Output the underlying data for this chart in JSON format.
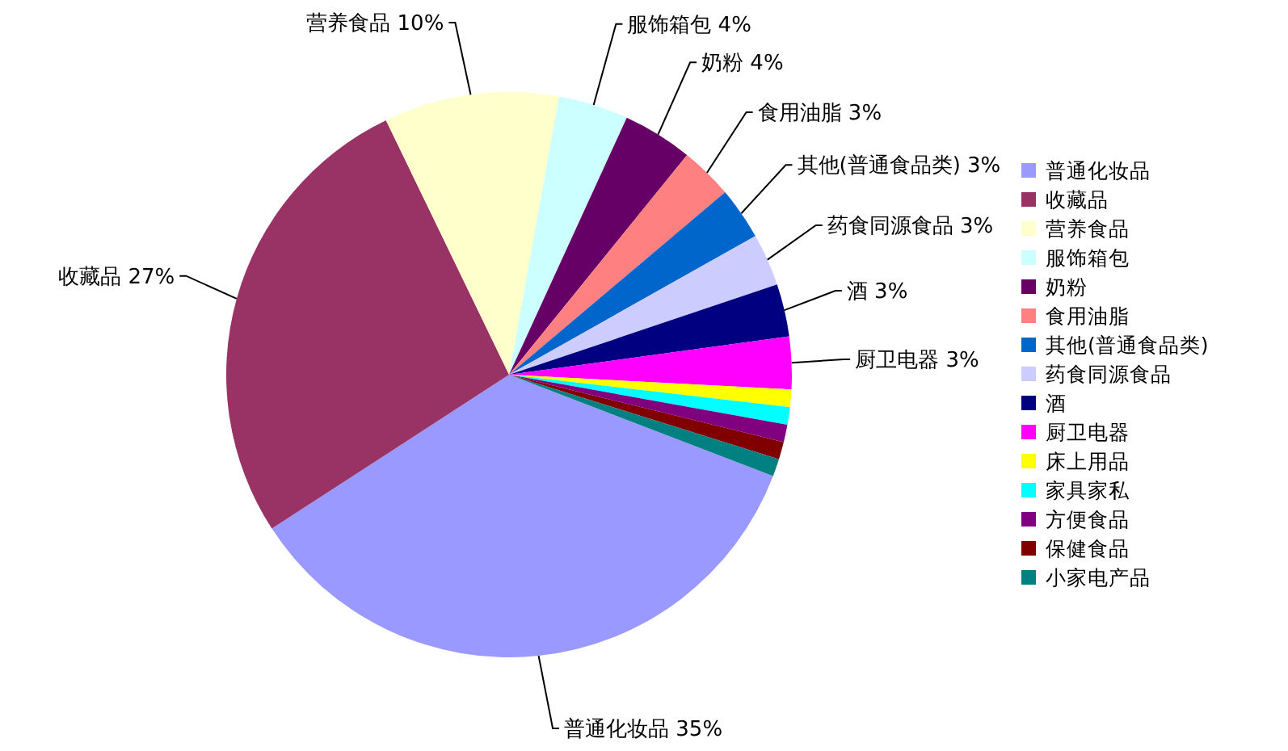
{
  "chart_data": {
    "type": "pie",
    "categories": [
      "普通化妆品",
      "收藏品",
      "营养食品",
      "服饰箱包",
      "奶粉",
      "食用油脂",
      "其他(普通食品类)",
      "药食同源食品",
      "酒",
      "厨卫电器",
      "床上用品",
      "家具家私",
      "方便食品",
      "保健食品",
      "小家电产品"
    ],
    "values": [
      35,
      27,
      10,
      4,
      4,
      3,
      3,
      3,
      3,
      3,
      1,
      1,
      1,
      1,
      1
    ],
    "value_labels": [
      "35%",
      "27%",
      "10%",
      "4%",
      "4%",
      "3%",
      "3%",
      "3%",
      "3%",
      "3%",
      null,
      null,
      null,
      null,
      null
    ],
    "colors": [
      "#9999ff",
      "#993366",
      "#ffffcc",
      "#ccffff",
      "#660066",
      "#ff8080",
      "#0066cc",
      "#ccccff",
      "#000080",
      "#ff00ff",
      "#ffff00",
      "#00ffff",
      "#800080",
      "#800000",
      "#008080"
    ],
    "legend": "right"
  }
}
